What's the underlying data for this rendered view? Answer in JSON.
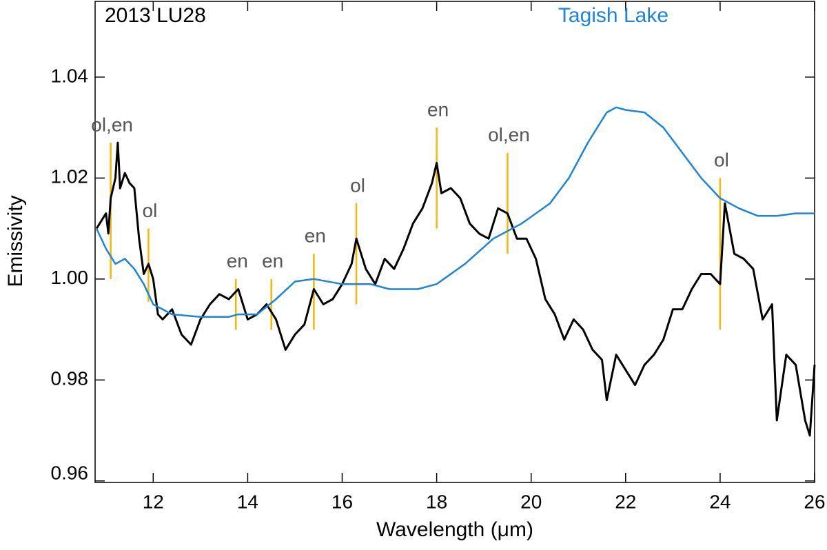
{
  "chart_data": {
    "type": "line",
    "x_label": "Wavelength (μm)",
    "y_label": "Emissivity",
    "xlim": [
      10.77,
      26
    ],
    "ylim": [
      0.9597,
      1.055
    ],
    "xticks": [
      12,
      14,
      16,
      18,
      20,
      22,
      24,
      26
    ],
    "yticks": [
      0.96,
      0.98,
      {
        "value": 1,
        "label": "1.00"
      },
      1.02,
      1.04
    ],
    "series": [
      {
        "name": "2013 LU28",
        "color": "#000000",
        "x": [
          10.8,
          11.0,
          11.05,
          11.1,
          11.2,
          11.25,
          11.3,
          11.4,
          11.5,
          11.6,
          11.7,
          11.8,
          11.9,
          12.0,
          12.1,
          12.2,
          12.4,
          12.6,
          12.8,
          13.0,
          13.2,
          13.4,
          13.6,
          13.8,
          14.0,
          14.2,
          14.4,
          14.6,
          14.8,
          15.0,
          15.2,
          15.4,
          15.6,
          15.8,
          16.0,
          16.2,
          16.3,
          16.5,
          16.7,
          16.9,
          17.1,
          17.3,
          17.5,
          17.7,
          17.9,
          18.0,
          18.1,
          18.3,
          18.5,
          18.7,
          18.9,
          19.1,
          19.3,
          19.5,
          19.7,
          19.9,
          20.1,
          20.3,
          20.5,
          20.7,
          20.9,
          21.1,
          21.3,
          21.5,
          21.6,
          21.8,
          22.0,
          22.2,
          22.4,
          22.6,
          22.8,
          23.0,
          23.2,
          23.4,
          23.6,
          23.8,
          24.0,
          24.1,
          24.3,
          24.5,
          24.7,
          24.9,
          25.1,
          25.2,
          25.4,
          25.6,
          25.8,
          25.9,
          26.0
        ],
        "values": [
          1.01,
          1.013,
          1.009,
          1.016,
          1.02,
          1.027,
          1.018,
          1.021,
          1.019,
          1.018,
          1.008,
          1.001,
          1.003,
          1.0,
          0.993,
          0.992,
          0.994,
          0.989,
          0.987,
          0.992,
          0.995,
          0.997,
          0.996,
          0.998,
          0.992,
          0.993,
          0.995,
          0.992,
          0.986,
          0.989,
          0.991,
          0.998,
          0.995,
          0.996,
          0.999,
          1.003,
          1.008,
          1.002,
          0.999,
          1.004,
          1.002,
          1.006,
          1.011,
          1.014,
          1.019,
          1.023,
          1.017,
          1.018,
          1.016,
          1.011,
          1.009,
          1.008,
          1.014,
          1.013,
          1.008,
          1.008,
          1.004,
          0.996,
          0.993,
          0.988,
          0.992,
          0.99,
          0.986,
          0.984,
          0.976,
          0.985,
          0.982,
          0.979,
          0.983,
          0.985,
          0.988,
          0.994,
          0.994,
          0.998,
          1.001,
          1.001,
          0.999,
          1.015,
          1.005,
          1.004,
          1.002,
          0.992,
          0.995,
          0.972,
          0.985,
          0.983,
          0.972,
          0.969,
          0.983
        ]
      },
      {
        "name": "Tagish Lake",
        "color": "#1a84e0",
        "x": [
          10.8,
          11.0,
          11.2,
          11.4,
          11.6,
          11.8,
          12.0,
          12.4,
          13.0,
          13.6,
          13.8,
          14.2,
          14.6,
          15.0,
          15.4,
          16.0,
          16.6,
          17.0,
          17.6,
          18.0,
          18.6,
          19.2,
          19.8,
          20.4,
          20.8,
          21.2,
          21.6,
          21.8,
          22.0,
          22.4,
          22.8,
          23.2,
          23.6,
          24.0,
          24.4,
          24.8,
          25.2,
          25.6,
          26.0
        ],
        "values": [
          1.01,
          1.006,
          1.003,
          1.004,
          1.002,
          0.999,
          0.995,
          0.993,
          0.9925,
          0.9925,
          0.993,
          0.993,
          0.996,
          0.9995,
          1.0,
          0.999,
          0.999,
          0.998,
          0.998,
          0.999,
          1.003,
          1.008,
          1.011,
          1.015,
          1.02,
          1.027,
          1.033,
          1.034,
          1.0335,
          1.033,
          1.03,
          1.025,
          1.02,
          1.016,
          1.014,
          1.0125,
          1.0125,
          1.013,
          1.013
        ]
      }
    ],
    "annotation_color": "#f5b800",
    "annotations": [
      {
        "x": 11.1,
        "y0": 1.0,
        "y1": 1.027,
        "label": "ol,en"
      },
      {
        "x": 11.9,
        "y0": 0.9955,
        "y1": 1.01,
        "label": "ol"
      },
      {
        "x": 13.75,
        "y0": 0.99,
        "y1": 1.0,
        "label": "en"
      },
      {
        "x": 14.5,
        "y0": 0.99,
        "y1": 1.0,
        "label": "en"
      },
      {
        "x": 15.4,
        "y0": 0.99,
        "y1": 1.005,
        "label": "en"
      },
      {
        "x": 16.3,
        "y0": 0.995,
        "y1": 1.015,
        "label": "ol"
      },
      {
        "x": 18.0,
        "y0": 1.01,
        "y1": 1.03,
        "label": "en"
      },
      {
        "x": 19.5,
        "y0": 1.005,
        "y1": 1.025,
        "label": "ol,en"
      },
      {
        "x": 24.0,
        "y0": 0.99,
        "y1": 1.02,
        "label": "ol"
      }
    ]
  }
}
